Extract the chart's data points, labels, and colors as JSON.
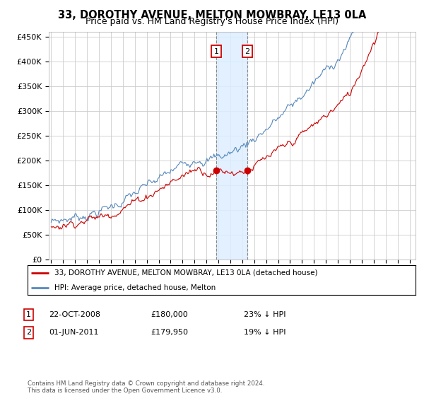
{
  "title": "33, DOROTHY AVENUE, MELTON MOWBRAY, LE13 0LA",
  "subtitle": "Price paid vs. HM Land Registry's House Price Index (HPI)",
  "title_fontsize": 10.5,
  "subtitle_fontsize": 9,
  "ylabel_ticks": [
    "£0",
    "£50K",
    "£100K",
    "£150K",
    "£200K",
    "£250K",
    "£300K",
    "£350K",
    "£400K",
    "£450K"
  ],
  "ytick_values": [
    0,
    50000,
    100000,
    150000,
    200000,
    250000,
    300000,
    350000,
    400000,
    450000
  ],
  "ylim": [
    0,
    460000
  ],
  "xlim_start": 1994.8,
  "xlim_end": 2025.5,
  "transaction1": {
    "date": 2008.81,
    "price": 180000,
    "label": "1",
    "date_str": "22-OCT-2008",
    "price_str": "£180,000",
    "note": "23% ↓ HPI"
  },
  "transaction2": {
    "date": 2011.42,
    "price": 179950,
    "label": "2",
    "date_str": "01-JUN-2011",
    "price_str": "£179,950",
    "note": "19% ↓ HPI"
  },
  "red_line_label": "33, DOROTHY AVENUE, MELTON MOWBRAY, LE13 0LA (detached house)",
  "blue_line_label": "HPI: Average price, detached house, Melton",
  "copyright": "Contains HM Land Registry data © Crown copyright and database right 2024.\nThis data is licensed under the Open Government Licence v3.0.",
  "red_color": "#cc0000",
  "blue_color": "#5588bb",
  "shade_color": "#ddeeff",
  "grid_color": "#cccccc",
  "bg_color": "#ffffff"
}
